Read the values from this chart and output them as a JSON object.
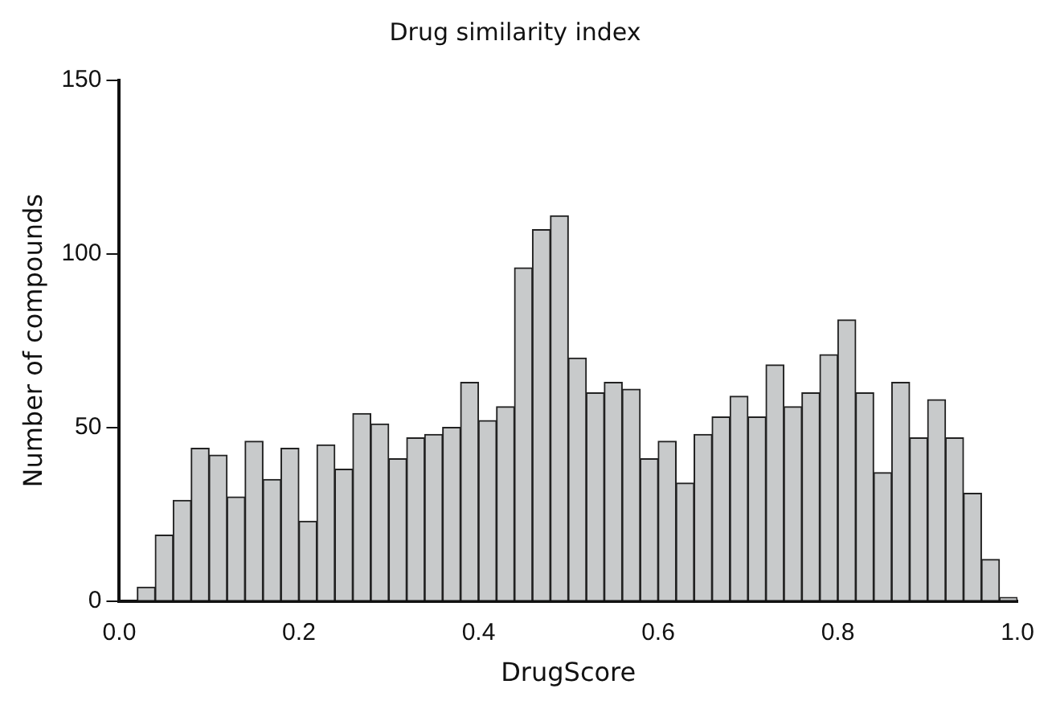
{
  "chart_data": {
    "type": "histogram",
    "title": "Drug similarity index",
    "xlabel": "DrugScore",
    "ylabel": "Number of compounds",
    "bins": [
      0.02,
      0.04,
      0.06,
      0.08,
      0.1,
      0.12,
      0.14,
      0.16,
      0.18,
      0.2,
      0.22,
      0.24,
      0.26,
      0.28,
      0.3,
      0.32,
      0.34,
      0.36,
      0.38,
      0.4,
      0.42,
      0.44,
      0.46,
      0.48,
      0.5,
      0.52,
      0.54,
      0.56,
      0.58,
      0.6,
      0.62,
      0.64,
      0.66,
      0.68,
      0.7,
      0.72,
      0.74,
      0.76,
      0.78,
      0.8,
      0.82,
      0.84,
      0.86,
      0.88,
      0.9,
      0.92,
      0.94,
      0.96,
      0.98,
      1.0
    ],
    "values": [
      4,
      19,
      29,
      44,
      42,
      30,
      46,
      35,
      44,
      23,
      45,
      38,
      54,
      51,
      41,
      47,
      48,
      50,
      63,
      52,
      56,
      96,
      107,
      111,
      70,
      60,
      63,
      61,
      41,
      46,
      34,
      48,
      53,
      59,
      53,
      68,
      56,
      60,
      71,
      81,
      60,
      37,
      63,
      47,
      58,
      47,
      31,
      12,
      1
    ],
    "color": "#c8cacb",
    "xlim": [
      0,
      1
    ],
    "xticks": [
      {
        "value": 0,
        "label": "0.0"
      },
      0.2,
      0.4,
      0.6,
      0.8,
      {
        "value": 1,
        "label": "1.0"
      }
    ],
    "ylim": [
      0,
      150
    ],
    "yticks": [
      0,
      50,
      100,
      150
    ],
    "grid": false
  }
}
